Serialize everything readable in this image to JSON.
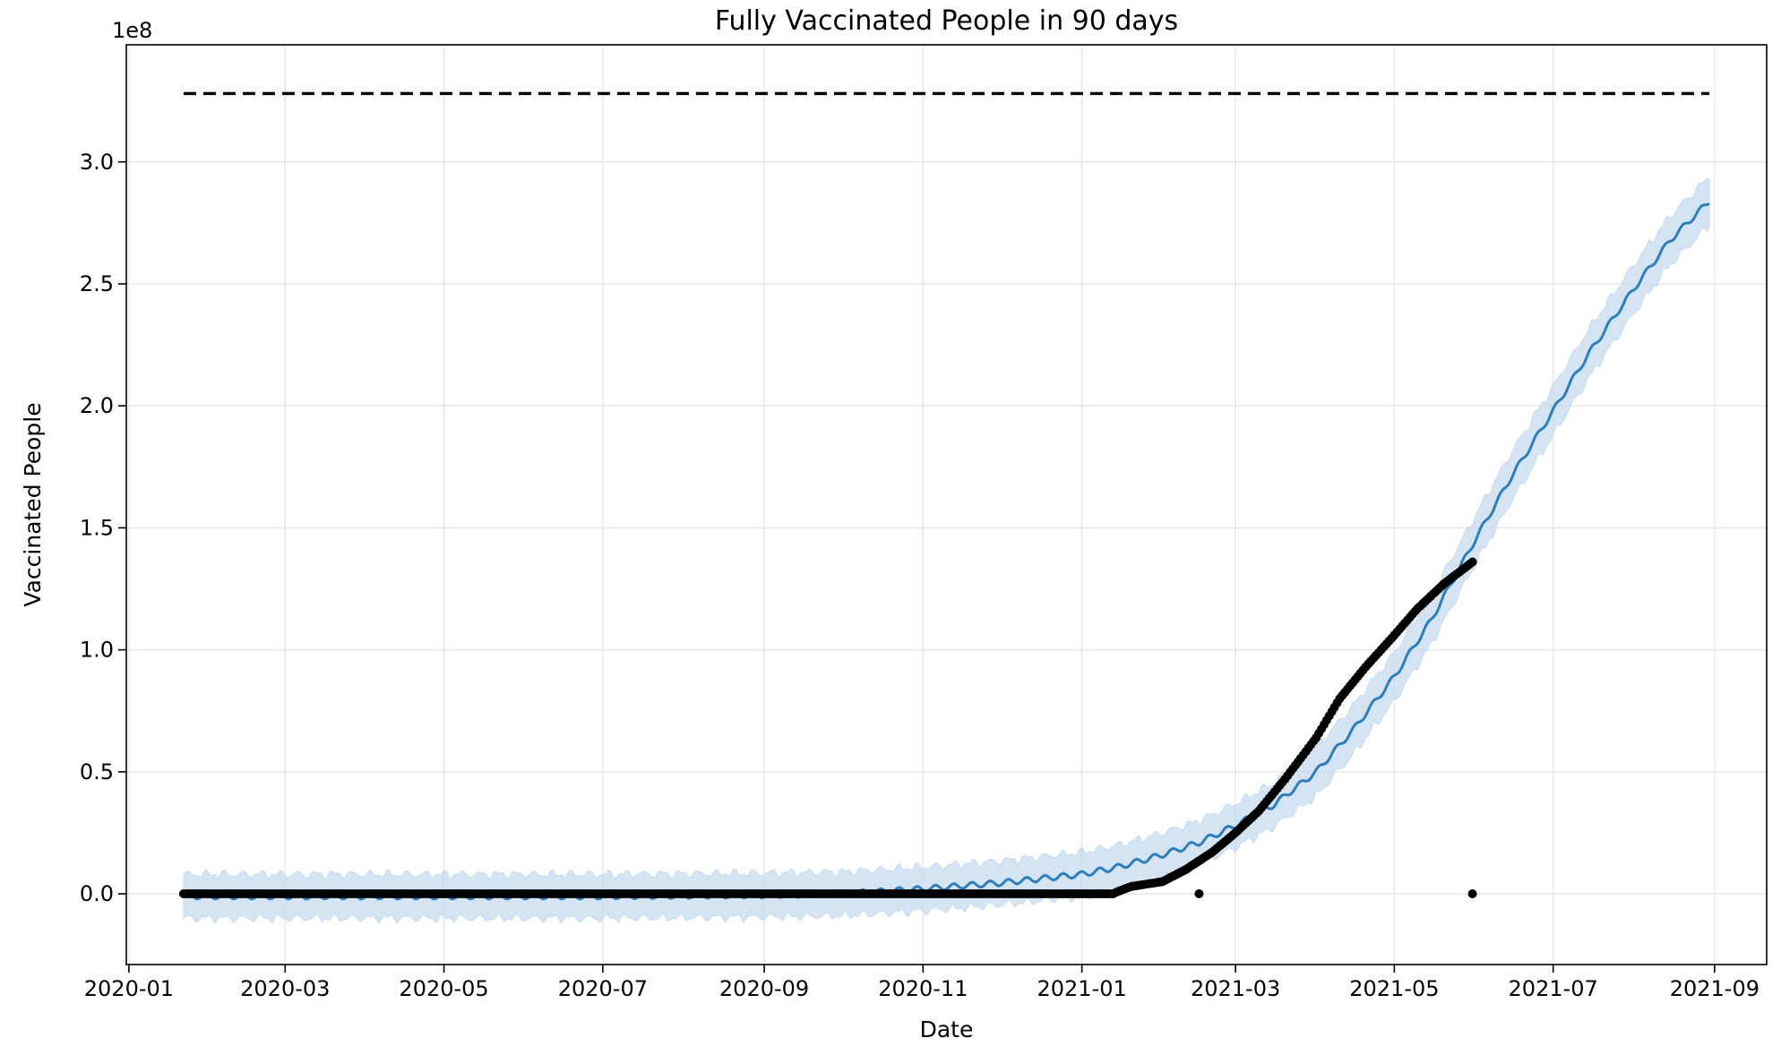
{
  "chart_data": {
    "type": "line",
    "title": "Fully Vaccinated People in 90 days",
    "xlabel": "Date",
    "ylabel": "Vaccinated People",
    "y_scale_multiplier_label": "1e8",
    "grid": true,
    "x_axis_type": "date",
    "xlim": [
      "2019-12-31",
      "2021-09-21"
    ],
    "ylim": [
      -0.29,
      3.48
    ],
    "x_ticks": [
      "2020-01",
      "2020-03",
      "2020-05",
      "2020-07",
      "2020-09",
      "2020-11",
      "2021-01",
      "2021-03",
      "2021-05",
      "2021-07",
      "2021-09"
    ],
    "y_ticks": [
      0.0,
      0.5,
      1.0,
      1.5,
      2.0,
      2.5,
      3.0
    ],
    "y_tick_labels": [
      "0.0",
      "0.5",
      "1.0",
      "1.5",
      "2.0",
      "2.5",
      "3.0"
    ],
    "colors": {
      "forecast_line": "#2e7ebc",
      "uncertainty_band": "#c6dbef",
      "observed_points": "#000000",
      "capacity_line": "#000000",
      "grid": "#e6e6e6"
    },
    "capacity": {
      "start": "2020-01-22",
      "end": "2021-08-30",
      "value": 3.28
    },
    "forecast": {
      "dates": [
        "2020-01-22",
        "2020-03-01",
        "2020-05-01",
        "2020-07-01",
        "2020-09-01",
        "2020-10-01",
        "2020-11-01",
        "2020-12-01",
        "2021-01-01",
        "2021-01-15",
        "2021-02-01",
        "2021-02-15",
        "2021-03-01",
        "2021-03-15",
        "2021-04-01",
        "2021-04-15",
        "2021-05-01",
        "2021-05-15",
        "2021-06-01",
        "2021-06-15",
        "2021-07-01",
        "2021-07-15",
        "2021-08-01",
        "2021-08-15",
        "2021-08-30"
      ],
      "yhat": [
        -0.01,
        -0.01,
        -0.01,
        -0.01,
        -0.005,
        0.0,
        0.02,
        0.045,
        0.08,
        0.11,
        0.16,
        0.21,
        0.28,
        0.36,
        0.5,
        0.67,
        0.89,
        1.12,
        1.45,
        1.71,
        1.98,
        2.22,
        2.48,
        2.68,
        2.84
      ],
      "yhat_lower": [
        -0.1,
        -0.1,
        -0.1,
        -0.1,
        -0.095,
        -0.09,
        -0.07,
        -0.045,
        -0.01,
        0.02,
        0.07,
        0.12,
        0.19,
        0.27,
        0.4,
        0.57,
        0.79,
        1.02,
        1.35,
        1.61,
        1.88,
        2.12,
        2.38,
        2.58,
        2.74
      ],
      "yhat_upper": [
        0.08,
        0.08,
        0.08,
        0.08,
        0.085,
        0.09,
        0.11,
        0.135,
        0.17,
        0.2,
        0.25,
        0.3,
        0.37,
        0.45,
        0.6,
        0.77,
        0.99,
        1.22,
        1.55,
        1.81,
        2.08,
        2.32,
        2.58,
        2.78,
        2.94
      ]
    },
    "observed": {
      "dates": [
        "2020-01-22",
        "2020-03-01",
        "2020-05-01",
        "2020-07-01",
        "2020-09-01",
        "2020-11-01",
        "2020-12-15",
        "2021-01-13",
        "2021-01-15",
        "2021-01-20",
        "2021-02-01",
        "2021-02-10",
        "2021-02-20",
        "2021-03-01",
        "2021-03-10",
        "2021-03-20",
        "2021-04-01",
        "2021-04-10",
        "2021-04-20",
        "2021-05-01",
        "2021-05-10",
        "2021-05-20",
        "2021-05-31"
      ],
      "values": [
        0.0,
        0.0,
        0.0,
        0.0,
        0.0,
        0.0,
        0.0,
        0.0,
        0.01,
        0.03,
        0.05,
        0.1,
        0.17,
        0.25,
        0.34,
        0.47,
        0.64,
        0.8,
        0.93,
        1.06,
        1.17,
        1.27,
        1.36
      ],
      "outliers": [
        {
          "date": "2021-02-15",
          "value": 0.0
        },
        {
          "date": "2021-05-31",
          "value": 0.0
        }
      ]
    }
  }
}
